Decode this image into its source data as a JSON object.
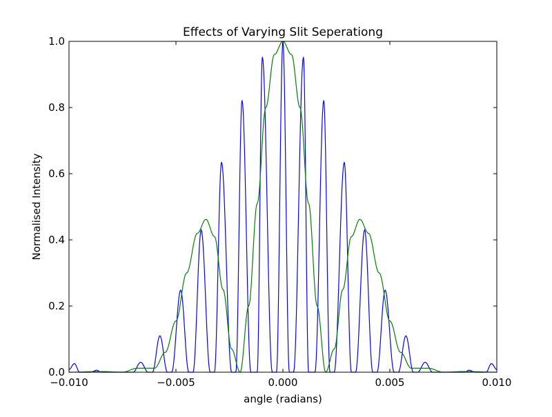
{
  "chart_data": {
    "type": "line",
    "title": "Effects of Varying Slit Seperationg",
    "xlabel": "angle (radians)",
    "ylabel": "Normalised Intensity",
    "xlim": [
      -0.01,
      0.01
    ],
    "ylim": [
      0.0,
      1.0
    ],
    "xticks": [
      -0.01,
      -0.005,
      0.0,
      0.005,
      0.01
    ],
    "xtick_labels": [
      "−0.010",
      "−0.005",
      "0.000",
      "0.005",
      "0.010"
    ],
    "yticks": [
      0.0,
      0.2,
      0.4,
      0.6,
      0.8,
      1.0
    ],
    "ytick_labels": [
      "0.0",
      "0.2",
      "0.4",
      "0.6",
      "0.8",
      "1.0"
    ],
    "grid": false,
    "legend": "none",
    "series": [
      {
        "color": "#0000ff",
        "x": [
          -0.01,
          -0.00975,
          -0.0095,
          -0.009,
          -0.0087,
          -0.0085,
          -0.0081,
          -0.0076,
          -0.0072,
          -0.007,
          -0.00665,
          -0.0063,
          -0.0061,
          -0.00575,
          -0.0054,
          -0.0052,
          -0.00478,
          -0.0044,
          -0.0042,
          -0.00382,
          -0.0034,
          -0.0032,
          -0.00287,
          -0.0024,
          -0.0022,
          -0.00191,
          -0.0015,
          -0.0012,
          -0.00096,
          -0.0005,
          -0.0003,
          0.0,
          0.0003,
          0.0005,
          0.00096,
          0.0012,
          0.0015,
          0.00191,
          0.0022,
          0.0024,
          0.00287,
          0.0032,
          0.0034,
          0.00382,
          0.0042,
          0.0044,
          0.00478,
          0.0052,
          0.0054,
          0.00575,
          0.0061,
          0.0063,
          0.00665,
          0.007,
          0.0072,
          0.0076,
          0.0081,
          0.0085,
          0.0087,
          0.009,
          0.0095,
          0.00975,
          0.01
        ],
        "y": [
          0.008,
          0.026,
          0.0,
          0.0,
          0.006,
          0.0,
          0.0,
          0.0,
          0.0,
          0.0,
          0.03,
          0.0,
          0.0,
          0.11,
          0.0,
          0.0,
          0.248,
          0.0,
          0.0,
          0.43,
          0.0,
          0.0,
          0.635,
          0.0,
          0.0,
          0.822,
          0.0,
          0.0,
          0.953,
          0.0,
          0.0,
          1.0,
          0.0,
          0.0,
          0.953,
          0.0,
          0.0,
          0.822,
          0.0,
          0.0,
          0.635,
          0.0,
          0.0,
          0.43,
          0.0,
          0.0,
          0.248,
          0.0,
          0.0,
          0.11,
          0.0,
          0.0,
          0.03,
          0.0,
          0.0,
          0.0,
          0.0,
          0.0,
          0.006,
          0.0,
          0.0,
          0.026,
          0.008
        ]
      },
      {
        "color": "#008000",
        "x": [
          -0.01,
          -0.0085,
          -0.0075,
          -0.0068,
          -0.006,
          -0.0055,
          -0.005,
          -0.0045,
          -0.004,
          -0.0036,
          -0.0032,
          -0.0028,
          -0.0024,
          -0.002,
          -0.0016,
          -0.0012,
          -0.0008,
          -0.0004,
          0.0,
          0.0004,
          0.0008,
          0.0012,
          0.0016,
          0.002,
          0.0024,
          0.0028,
          0.0032,
          0.0036,
          0.004,
          0.0045,
          0.005,
          0.0055,
          0.006,
          0.0068,
          0.0075,
          0.0085,
          0.01
        ],
        "y": [
          0.0,
          0.002,
          0.0,
          0.012,
          0.012,
          0.06,
          0.155,
          0.3,
          0.42,
          0.462,
          0.41,
          0.25,
          0.07,
          0.0,
          0.2,
          0.51,
          0.8,
          0.96,
          1.0,
          0.96,
          0.8,
          0.51,
          0.2,
          0.0,
          0.07,
          0.25,
          0.41,
          0.462,
          0.42,
          0.3,
          0.155,
          0.06,
          0.012,
          0.012,
          0.0,
          0.002,
          0.0
        ]
      }
    ]
  }
}
